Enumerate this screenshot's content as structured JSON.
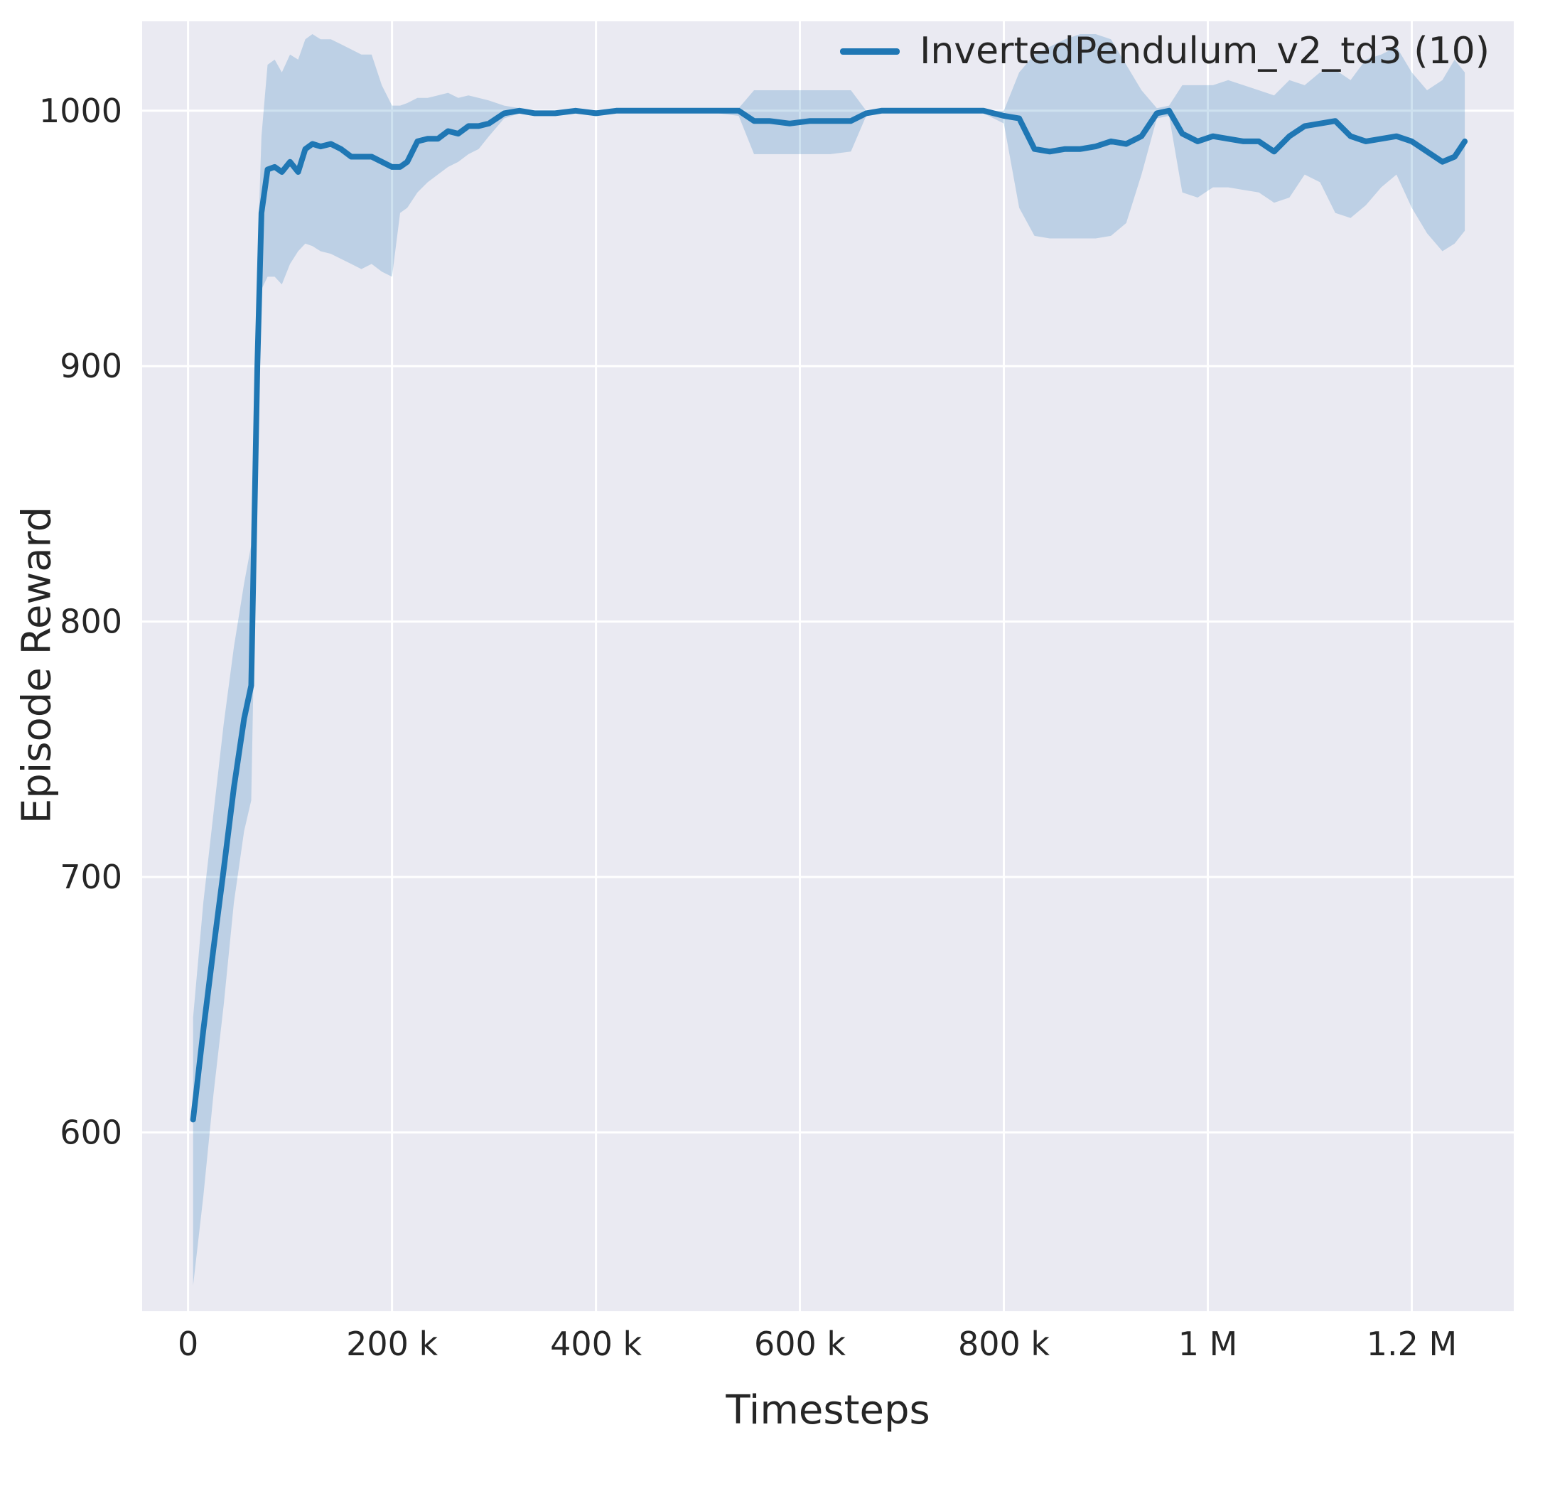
{
  "figure": {
    "background": "#ffffff",
    "plot_background": "#eaeaf2",
    "grid_color": "#ffffff",
    "text_color": "#262626",
    "tick_label_color": "#333333"
  },
  "legend": {
    "label": "InvertedPendulum_v2_td3 (10)",
    "line_color": "#1f77b4",
    "position": "upper right"
  },
  "chart_data": {
    "type": "line",
    "title": "",
    "xlabel": "Timesteps",
    "ylabel": "Episode Reward",
    "xlim": [
      -45000,
      1300000
    ],
    "ylim": [
      530,
      1035
    ],
    "x_ticks": [
      0,
      200000,
      400000,
      600000,
      800000,
      1000000,
      1200000
    ],
    "x_tick_labels": [
      "0",
      "200 k",
      "400 k",
      "600 k",
      "800 k",
      "1 M",
      "1.2 M"
    ],
    "y_ticks": [
      600,
      700,
      800,
      900,
      1000
    ],
    "y_tick_labels": [
      "600",
      "700",
      "800",
      "900",
      "1000"
    ],
    "grid": true,
    "legend_position": "upper right",
    "series": [
      {
        "name": "InvertedPendulum_v2_td3 (10)",
        "color": "#1f77b4",
        "band_opacity": 0.22,
        "x": [
          5000,
          15000,
          25000,
          35000,
          45000,
          55000,
          62000,
          68000,
          72000,
          78000,
          85000,
          92000,
          100000,
          108000,
          115000,
          122000,
          130000,
          140000,
          150000,
          160000,
          170000,
          180000,
          190000,
          200000,
          208000,
          215000,
          225000,
          235000,
          245000,
          255000,
          265000,
          275000,
          285000,
          295000,
          310000,
          325000,
          340000,
          360000,
          380000,
          400000,
          420000,
          440000,
          460000,
          480000,
          500000,
          520000,
          540000,
          555000,
          570000,
          590000,
          610000,
          630000,
          650000,
          665000,
          680000,
          700000,
          720000,
          740000,
          760000,
          780000,
          800000,
          815000,
          830000,
          845000,
          860000,
          875000,
          890000,
          905000,
          920000,
          935000,
          950000,
          962000,
          975000,
          990000,
          1005000,
          1020000,
          1035000,
          1050000,
          1065000,
          1080000,
          1095000,
          1110000,
          1125000,
          1140000,
          1155000,
          1170000,
          1185000,
          1200000,
          1215000,
          1230000,
          1242000,
          1252000
        ],
        "mean": [
          605,
          640,
          672,
          703,
          735,
          762,
          775,
          900,
          960,
          977,
          978,
          976,
          980,
          976,
          985,
          987,
          986,
          987,
          985,
          982,
          982,
          982,
          980,
          978,
          978,
          980,
          988,
          989,
          989,
          992,
          991,
          994,
          994,
          995,
          999,
          1000,
          999,
          999,
          1000,
          999,
          1000,
          1000,
          1000,
          1000,
          1000,
          1000,
          1000,
          996,
          996,
          995,
          996,
          996,
          996,
          999,
          1000,
          1000,
          1000,
          1000,
          1000,
          1000,
          998,
          997,
          985,
          984,
          985,
          985,
          986,
          988,
          987,
          990,
          999,
          1000,
          991,
          988,
          990,
          989,
          988,
          988,
          984,
          990,
          994,
          995,
          996,
          990,
          988,
          989,
          990,
          988,
          984,
          980,
          982,
          988
        ],
        "lower": [
          540,
          575,
          615,
          650,
          690,
          718,
          730,
          860,
          930,
          935,
          935,
          932,
          940,
          945,
          948,
          947,
          945,
          944,
          942,
          940,
          938,
          940,
          937,
          935,
          960,
          962,
          968,
          972,
          975,
          978,
          980,
          983,
          985,
          990,
          997,
          999,
          998,
          998,
          999,
          998,
          999,
          1000,
          1000,
          999,
          1000,
          999,
          998,
          983,
          983,
          983,
          983,
          983,
          984,
          998,
          999,
          999,
          1000,
          1000,
          999,
          999,
          995,
          962,
          951,
          950,
          950,
          950,
          950,
          951,
          956,
          975,
          997,
          998,
          968,
          966,
          970,
          970,
          969,
          968,
          964,
          966,
          975,
          972,
          960,
          958,
          963,
          970,
          975,
          962,
          952,
          945,
          948,
          953
        ],
        "upper": [
          645,
          690,
          725,
          760,
          790,
          815,
          830,
          940,
          990,
          1018,
          1020,
          1015,
          1022,
          1020,
          1028,
          1030,
          1028,
          1028,
          1026,
          1024,
          1022,
          1022,
          1010,
          1002,
          1002,
          1003,
          1005,
          1005,
          1006,
          1007,
          1005,
          1006,
          1005,
          1004,
          1002,
          1001,
          1000,
          1000,
          1000,
          1000,
          1000,
          1000,
          1000,
          1000,
          1000,
          1000,
          1001,
          1008,
          1008,
          1008,
          1008,
          1008,
          1008,
          1000,
          1000,
          1000,
          1000,
          1000,
          1000,
          1000,
          1000,
          1015,
          1022,
          1025,
          1028,
          1030,
          1030,
          1028,
          1018,
          1008,
          1001,
          1002,
          1010,
          1010,
          1010,
          1012,
          1010,
          1008,
          1006,
          1012,
          1010,
          1015,
          1016,
          1012,
          1020,
          1022,
          1025,
          1015,
          1008,
          1012,
          1020,
          1015
        ]
      }
    ]
  }
}
